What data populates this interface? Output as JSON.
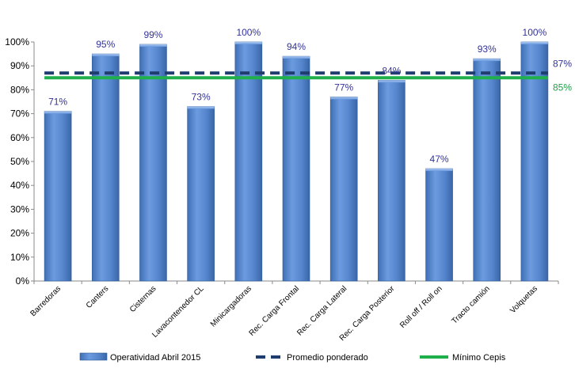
{
  "chart_data": {
    "type": "bar",
    "categories": [
      "Barredoras",
      "Canters",
      "Cisternas",
      "Lavacontenedor CL",
      "Minicargadoras",
      "Rec. Carga Frontal",
      "Rec. Carga Lateral",
      "Rec. Carga Posterior",
      "Roll off / Roll on",
      "Tracto camión",
      "Volquetas"
    ],
    "series": [
      {
        "name": "Operatividad Abril 2015",
        "values": [
          71,
          95,
          99,
          73,
          100,
          94,
          77,
          84,
          47,
          93,
          100
        ],
        "labels": [
          "71%",
          "95%",
          "99%",
          "73%",
          "100%",
          "94%",
          "77%",
          "84%",
          "47%",
          "93%",
          "100%"
        ],
        "color": "#5a8ad0"
      }
    ],
    "reference_lines": [
      {
        "name": "Promedio ponderado",
        "value": 87,
        "label": "87%",
        "style": "dashed",
        "color": "#1f3c6e",
        "label_color": "#333399"
      },
      {
        "name": "Mínimo Cepis",
        "value": 85,
        "label": "85%",
        "style": "solid",
        "color": "#1fb04b",
        "label_color": "#1fa048"
      }
    ],
    "y_ticks": [
      "0%",
      "10%",
      "20%",
      "30%",
      "40%",
      "50%",
      "60%",
      "70%",
      "80%",
      "90%",
      "100%"
    ],
    "ylim": [
      0,
      100
    ],
    "grid": false,
    "legend_position": "bottom",
    "title": "",
    "xlabel": "",
    "ylabel": ""
  }
}
